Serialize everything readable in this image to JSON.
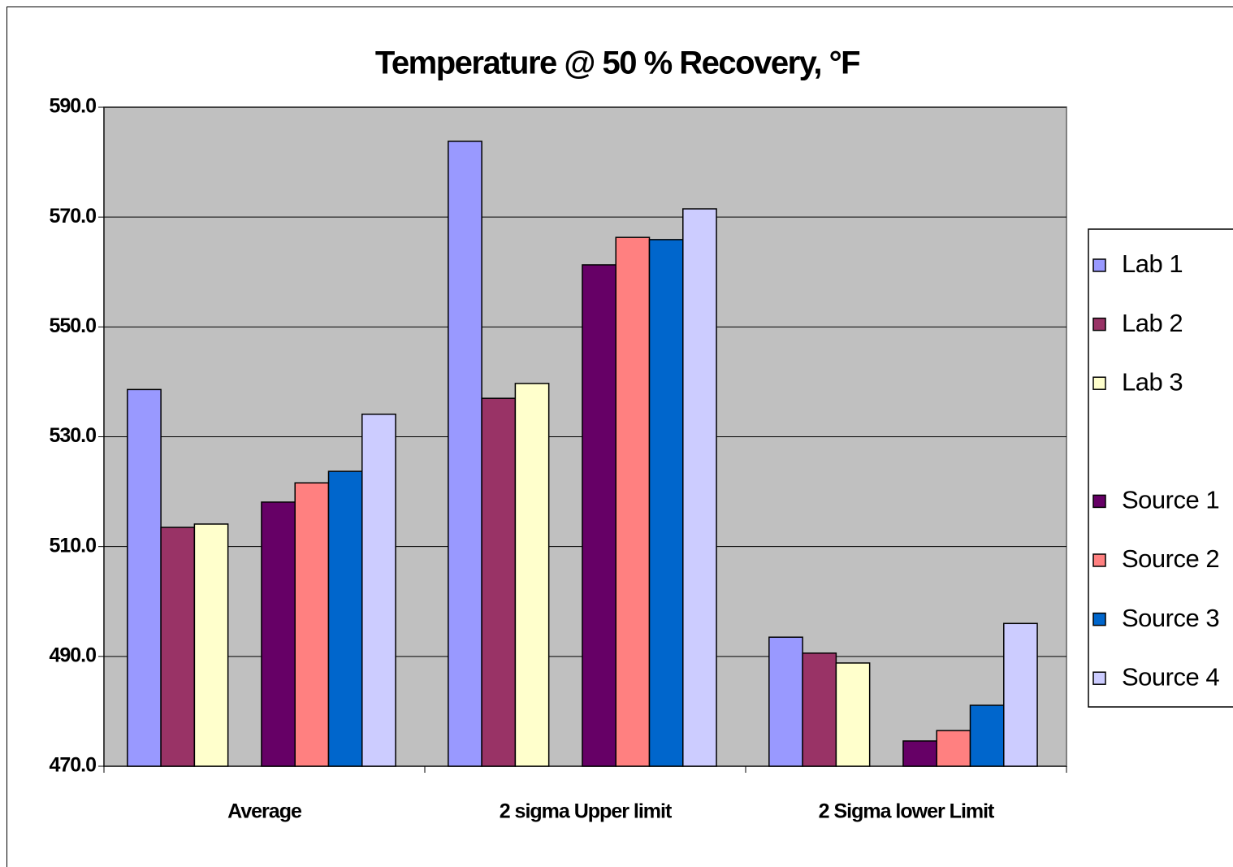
{
  "chart_data": {
    "type": "bar",
    "title": "Temperature @ 50 % Recovery, °F",
    "categories": [
      "Average",
      "2 sigma Upper limit",
      "2 Sigma lower Limit"
    ],
    "series": [
      {
        "name": "Lab 1",
        "color": "#9999ff",
        "values": [
          538.6,
          583.8,
          493.5
        ]
      },
      {
        "name": "Lab 2",
        "color": "#993366",
        "values": [
          513.5,
          537.0,
          490.6
        ]
      },
      {
        "name": "Lab 3",
        "color": "#ffffcc",
        "values": [
          514.1,
          539.7,
          488.8
        ]
      },
      {
        "name": "Source 1",
        "color": "#660066",
        "values": [
          518.1,
          561.3,
          474.6
        ]
      },
      {
        "name": "Source 2",
        "color": "#ff8080",
        "values": [
          521.6,
          566.3,
          476.5
        ]
      },
      {
        "name": "Source 3",
        "color": "#0066cc",
        "values": [
          523.7,
          565.9,
          481.1
        ]
      },
      {
        "name": "Source 4",
        "color": "#ccccff",
        "values": [
          534.1,
          571.5,
          496.0
        ]
      }
    ],
    "ylim": [
      470,
      590
    ],
    "yticks": [
      {
        "value": 470,
        "label": "470.0"
      },
      {
        "value": 490,
        "label": "490.0"
      },
      {
        "value": 510,
        "label": "510.0"
      },
      {
        "value": 530,
        "label": "530.0"
      },
      {
        "value": 550,
        "label": "550.0"
      },
      {
        "value": 570,
        "label": "570.0"
      },
      {
        "value": 590,
        "label": "590.0"
      }
    ],
    "grid": true,
    "plot_background": "#c0c0c0",
    "legend": "right"
  }
}
